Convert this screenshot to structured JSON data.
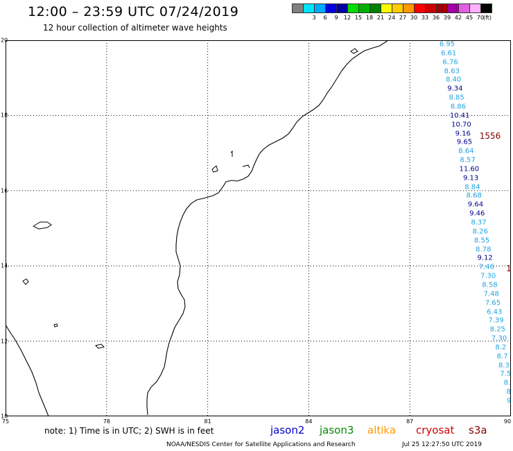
{
  "header": {
    "title": "12:00 – 23:59 UTC 07/24/2019",
    "subtitle": "12 hour collection of altimeter wave heights"
  },
  "legend": {
    "unit": "(ft)",
    "swatches": [
      {
        "color": "#808080",
        "label": ""
      },
      {
        "color": "#00e5ff",
        "label": "3"
      },
      {
        "color": "#00aaff",
        "label": "6"
      },
      {
        "color": "#0000e0",
        "label": "9"
      },
      {
        "color": "#0000a0",
        "label": "12"
      },
      {
        "color": "#00dd00",
        "label": "15"
      },
      {
        "color": "#00b000",
        "label": "18"
      },
      {
        "color": "#008000",
        "label": "21"
      },
      {
        "color": "#ffff00",
        "label": "24"
      },
      {
        "color": "#ffcc00",
        "label": "27"
      },
      {
        "color": "#ff9900",
        "label": "30"
      },
      {
        "color": "#ff0000",
        "label": "33"
      },
      {
        "color": "#cc0000",
        "label": "36"
      },
      {
        "color": "#a00000",
        "label": "39"
      },
      {
        "color": "#a000a0",
        "label": "42"
      },
      {
        "color": "#e060e0",
        "label": "45"
      },
      {
        "color": "#ffb0ff",
        "label": "70"
      },
      {
        "color": "#000000",
        "label": ""
      }
    ]
  },
  "map": {
    "lon_ticks": [
      "75",
      "78",
      "81",
      "84",
      "87",
      "90"
    ],
    "lat_ticks": [
      "20",
      "18",
      "16",
      "14",
      "12",
      "10"
    ],
    "colors": {
      "light": "#1fa3e0",
      "dark": "#00008b",
      "track": "#800000"
    }
  },
  "wave_heights": [
    {
      "value": "6.95",
      "color": "light"
    },
    {
      "value": "6.61",
      "color": "light"
    },
    {
      "value": "6.76",
      "color": "light"
    },
    {
      "value": "8.63",
      "color": "light"
    },
    {
      "value": "8.40",
      "color": "light"
    },
    {
      "value": "9.34",
      "color": "dark"
    },
    {
      "value": "8.85",
      "color": "light"
    },
    {
      "value": "8.86",
      "color": "light"
    },
    {
      "value": "10.41",
      "color": "dark"
    },
    {
      "value": "10.70",
      "color": "dark"
    },
    {
      "value": "9.16",
      "color": "dark"
    },
    {
      "value": "9.65",
      "color": "dark"
    },
    {
      "value": "8.64",
      "color": "light"
    },
    {
      "value": "8.57",
      "color": "light"
    },
    {
      "value": "11.60",
      "color": "dark"
    },
    {
      "value": "9.13",
      "color": "dark"
    },
    {
      "value": "8.84",
      "color": "light"
    },
    {
      "value": "8.68",
      "color": "light"
    },
    {
      "value": "9.64",
      "color": "dark"
    },
    {
      "value": "9.46",
      "color": "dark"
    },
    {
      "value": "8.37",
      "color": "light"
    },
    {
      "value": "8.26",
      "color": "light"
    },
    {
      "value": "8.55",
      "color": "light"
    },
    {
      "value": "8.78",
      "color": "light"
    },
    {
      "value": "9.12",
      "color": "dark"
    },
    {
      "value": "7.46",
      "color": "light"
    },
    {
      "value": "7.30",
      "color": "light"
    },
    {
      "value": "8.58",
      "color": "light"
    },
    {
      "value": "7.48",
      "color": "light"
    },
    {
      "value": "7.65",
      "color": "light"
    },
    {
      "value": "6.43",
      "color": "light"
    },
    {
      "value": "7.39",
      "color": "light"
    },
    {
      "value": "8.25",
      "color": "light"
    },
    {
      "value": "7.30",
      "color": "light"
    },
    {
      "value": "8.2",
      "color": "light"
    },
    {
      "value": "8.7",
      "color": "light"
    },
    {
      "value": "8.3",
      "color": "light"
    },
    {
      "value": "7.5",
      "color": "light"
    },
    {
      "value": "8.",
      "color": "light"
    },
    {
      "value": "8",
      "color": "light"
    },
    {
      "value": "9",
      "color": "light"
    }
  ],
  "tracks": [
    {
      "id": "1556"
    },
    {
      "id": "1"
    }
  ],
  "footer": {
    "note": "note:  1) Time is in UTC;  2) SWH is in feet",
    "satellites": [
      {
        "name": "jason2",
        "color": "#0000cc"
      },
      {
        "name": "jason3",
        "color": "#008800"
      },
      {
        "name": "altika",
        "color": "#ff9900"
      },
      {
        "name": "cryosat",
        "color": "#cc0000"
      },
      {
        "name": "s3a",
        "color": "#880000"
      }
    ],
    "credit": "NOAA/NESDIS Center for Satellite Applications and Research",
    "timestamp": "Jul 25 12:27:50 UTC 2019"
  }
}
